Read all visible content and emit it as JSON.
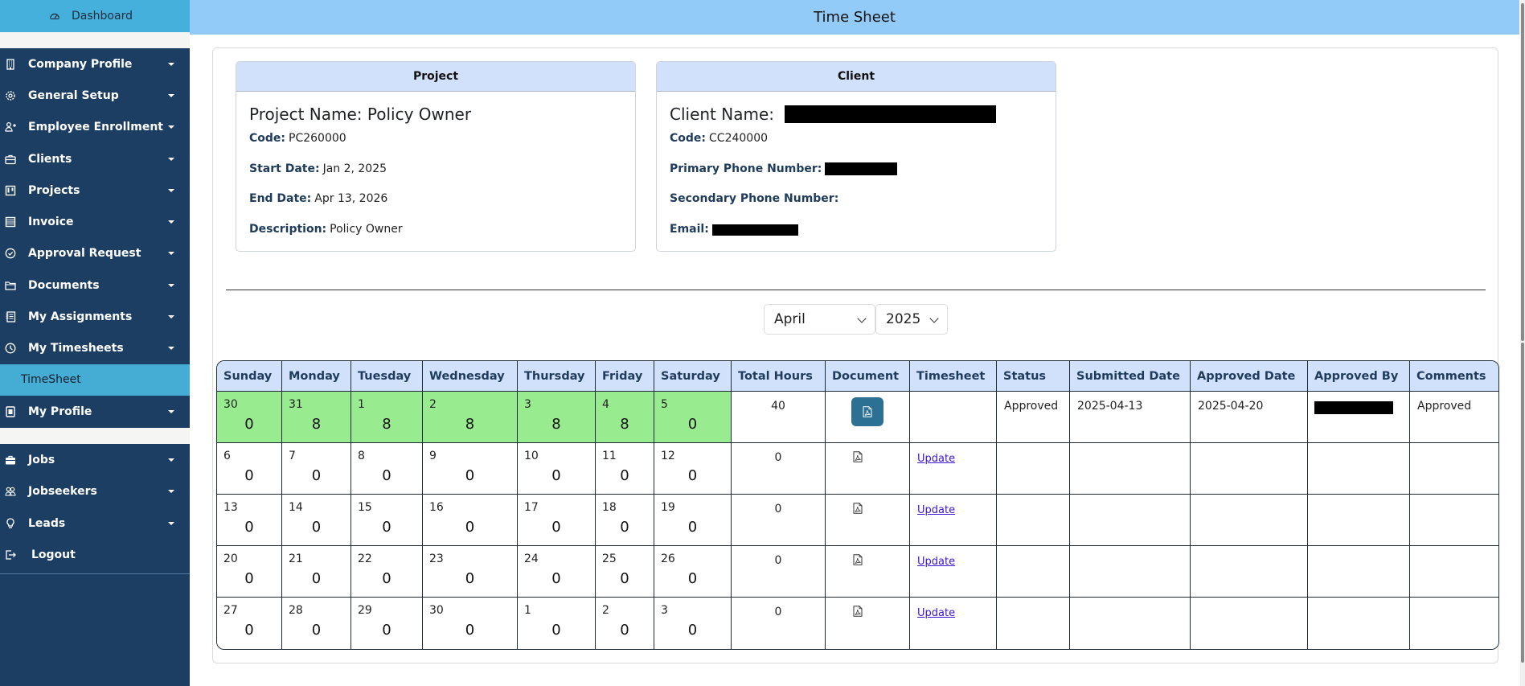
{
  "sidebar": {
    "dashboard": "Dashboard",
    "items": [
      {
        "label": "Company Profile",
        "icon": "building-icon"
      },
      {
        "label": "General Setup",
        "icon": "gear-icon"
      },
      {
        "label": "Employee Enrollment",
        "icon": "user-plus-icon"
      },
      {
        "label": "Clients",
        "icon": "briefcase-icon"
      },
      {
        "label": "Projects",
        "icon": "kanban-icon"
      },
      {
        "label": "Invoice",
        "icon": "invoice-icon"
      },
      {
        "label": "Approval Request",
        "icon": "check-circle-icon"
      },
      {
        "label": "Documents",
        "icon": "folder-icon"
      },
      {
        "label": "My Assignments",
        "icon": "journal-icon"
      },
      {
        "label": "My Timesheets",
        "icon": "clock-icon"
      }
    ],
    "sub_active": "TimeSheet",
    "my_profile": "My Profile",
    "items2": [
      {
        "label": "Jobs",
        "icon": "briefcase-fill-icon"
      },
      {
        "label": "Jobseekers",
        "icon": "people-icon"
      },
      {
        "label": "Leads",
        "icon": "lightbulb-icon"
      }
    ],
    "logout": "Logout"
  },
  "header": {
    "title": "Time Sheet"
  },
  "project": {
    "header": "Project",
    "name_label": "Project Name:",
    "name": "Policy Owner",
    "code_label": "Code:",
    "code": "PC260000",
    "start_label": "Start Date:",
    "start": "Jan 2, 2025",
    "end_label": "End Date:",
    "end": "Apr 13, 2026",
    "desc_label": "Description:",
    "desc": "Policy Owner"
  },
  "client": {
    "header": "Client",
    "name_label": "Client Name:",
    "code_label": "Code:",
    "code": "CC240000",
    "primary_label": "Primary Phone Number:",
    "secondary_label": "Secondary Phone Number:",
    "email_label": "Email:"
  },
  "filters": {
    "month": "April",
    "year": "2025"
  },
  "table": {
    "headers": [
      "Sunday",
      "Monday",
      "Tuesday",
      "Wednesday",
      "Thursday",
      "Friday",
      "Saturday",
      "Total Hours",
      "Document",
      "Timesheet",
      "Status",
      "Submitted Date",
      "Approved Date",
      "Approved By",
      "Comments"
    ],
    "rows": [
      {
        "days": [
          {
            "d": "30",
            "h": "0"
          },
          {
            "d": "31",
            "h": "8"
          },
          {
            "d": "1",
            "h": "8"
          },
          {
            "d": "2",
            "h": "8"
          },
          {
            "d": "3",
            "h": "8"
          },
          {
            "d": "4",
            "h": "8"
          },
          {
            "d": "5",
            "h": "0"
          }
        ],
        "total": "40",
        "status": "Approved",
        "submitted": "2025-04-13",
        "approved": "2025-04-20",
        "comments": "Approved",
        "timesheet": ""
      },
      {
        "days": [
          {
            "d": "6",
            "h": "0"
          },
          {
            "d": "7",
            "h": "0"
          },
          {
            "d": "8",
            "h": "0"
          },
          {
            "d": "9",
            "h": "0"
          },
          {
            "d": "10",
            "h": "0"
          },
          {
            "d": "11",
            "h": "0"
          },
          {
            "d": "12",
            "h": "0"
          }
        ],
        "total": "0",
        "status": "",
        "submitted": "",
        "approved": "",
        "comments": "",
        "timesheet": "Update"
      },
      {
        "days": [
          {
            "d": "13",
            "h": "0"
          },
          {
            "d": "14",
            "h": "0"
          },
          {
            "d": "15",
            "h": "0"
          },
          {
            "d": "16",
            "h": "0"
          },
          {
            "d": "17",
            "h": "0"
          },
          {
            "d": "18",
            "h": "0"
          },
          {
            "d": "19",
            "h": "0"
          }
        ],
        "total": "0",
        "status": "",
        "submitted": "",
        "approved": "",
        "comments": "",
        "timesheet": "Update"
      },
      {
        "days": [
          {
            "d": "20",
            "h": "0"
          },
          {
            "d": "21",
            "h": "0"
          },
          {
            "d": "22",
            "h": "0"
          },
          {
            "d": "23",
            "h": "0"
          },
          {
            "d": "24",
            "h": "0"
          },
          {
            "d": "25",
            "h": "0"
          },
          {
            "d": "26",
            "h": "0"
          }
        ],
        "total": "0",
        "status": "",
        "submitted": "",
        "approved": "",
        "comments": "",
        "timesheet": "Update"
      },
      {
        "days": [
          {
            "d": "27",
            "h": "0"
          },
          {
            "d": "28",
            "h": "0"
          },
          {
            "d": "29",
            "h": "0"
          },
          {
            "d": "30",
            "h": "0"
          },
          {
            "d": "1",
            "h": "0"
          },
          {
            "d": "2",
            "h": "0"
          },
          {
            "d": "3",
            "h": "0"
          }
        ],
        "total": "0",
        "status": "",
        "submitted": "",
        "approved": "",
        "comments": "",
        "timesheet": "Update"
      }
    ]
  },
  "colors": {
    "sidebar_bg": "#1c3e63",
    "sidebar_active": "#45add3",
    "header_bg": "#92cbf7",
    "table_header_bg": "#d2e1fb",
    "approved_week_bg": "#98eb8f",
    "doc_button_bg": "#2c7193",
    "link": "#3d16c9"
  }
}
